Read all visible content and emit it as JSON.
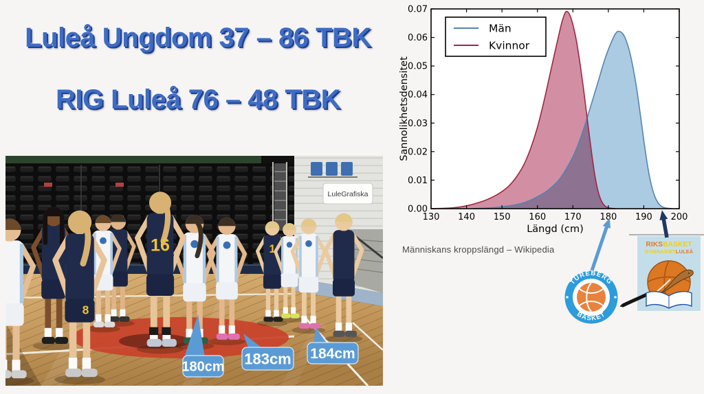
{
  "slide": {
    "title_line1": "Luleå Ungdom 37 – 86 TBK",
    "title_line2": "RIG Luleå 76 – 48 TBK",
    "title_color": "#3E6CC4",
    "title_shadow_color": "#1F3F8C",
    "background_color": "#F7F5F3"
  },
  "photo": {
    "sign_text": "LuleGrafiska",
    "jersey_numbers": [
      "16",
      "8",
      "1"
    ],
    "callout_color": "#5B9BD5",
    "callouts": [
      {
        "label": "180cm"
      },
      {
        "label": "183cm"
      },
      {
        "label": "184cm"
      }
    ]
  },
  "caption": "Människans kroppslängd – Wikipedia",
  "logos": {
    "tureberg": {
      "top_text": "TUREBERG",
      "bottom_text": "BASKET",
      "ring_color": "#2D9CDB",
      "ball_color": "#E8823C"
    },
    "rig": {
      "bg_color": "#C4DEE9",
      "line1": [
        {
          "text": "RIKS",
          "color": "#E8791B"
        },
        {
          "text": "BASKET",
          "color": "#F2CE0D"
        }
      ],
      "line2": [
        {
          "text": "GYMNASIET",
          "color": "#F2CE0D"
        },
        {
          "text": "LULEÅ",
          "color": "#E8791B"
        }
      ]
    }
  },
  "chart_data": {
    "type": "area",
    "title": "",
    "xlabel": "Längd (cm)",
    "ylabel": "Sannolikhetsdensitet",
    "xlim": [
      130,
      200
    ],
    "ylim": [
      0,
      0.07
    ],
    "xticks": [
      130,
      140,
      150,
      160,
      170,
      180,
      190,
      200
    ],
    "yticks": [
      0,
      0.01,
      0.02,
      0.03,
      0.04,
      0.05,
      0.06,
      0.07
    ],
    "grid": false,
    "legend_position": "upper-left",
    "series": [
      {
        "name": "Män",
        "line_color": "#5584B0",
        "fill_color": "#ABCBE3",
        "peak": {
          "x": 182.5,
          "y": 0.062
        },
        "points": [
          [
            142,
            0
          ],
          [
            148,
            0.0004
          ],
          [
            152,
            0.001
          ],
          [
            156,
            0.002
          ],
          [
            160,
            0.0042
          ],
          [
            163,
            0.0065
          ],
          [
            166,
            0.01
          ],
          [
            169,
            0.0158
          ],
          [
            171,
            0.021
          ],
          [
            173,
            0.0278
          ],
          [
            175,
            0.0358
          ],
          [
            177,
            0.044
          ],
          [
            179,
            0.0523
          ],
          [
            181,
            0.0588
          ],
          [
            182.5,
            0.062
          ],
          [
            184,
            0.0614
          ],
          [
            185,
            0.059
          ],
          [
            186,
            0.055
          ],
          [
            187,
            0.0492
          ],
          [
            188,
            0.042
          ],
          [
            189,
            0.0332
          ],
          [
            190,
            0.024
          ],
          [
            191,
            0.0155
          ],
          [
            192,
            0.009
          ],
          [
            193,
            0.0046
          ],
          [
            194,
            0.0021
          ],
          [
            195,
            0.0008
          ],
          [
            196,
            0.0003
          ],
          [
            198,
            0
          ]
        ]
      },
      {
        "name": "Kvinnor",
        "line_color": "#A02643",
        "fill_color": "#D28FA4",
        "peak": {
          "x": 168,
          "y": 0.069
        },
        "points": [
          [
            130,
            0
          ],
          [
            136,
            0.0003
          ],
          [
            140,
            0.001
          ],
          [
            145,
            0.0028
          ],
          [
            148,
            0.0045
          ],
          [
            150,
            0.006
          ],
          [
            152,
            0.008
          ],
          [
            154,
            0.011
          ],
          [
            156,
            0.015
          ],
          [
            158,
            0.0208
          ],
          [
            160,
            0.0285
          ],
          [
            162,
            0.0385
          ],
          [
            164,
            0.0497
          ],
          [
            166,
            0.0607
          ],
          [
            167,
            0.0658
          ],
          [
            168,
            0.069
          ],
          [
            169,
            0.0682
          ],
          [
            170,
            0.0645
          ],
          [
            171,
            0.0588
          ],
          [
            172,
            0.051
          ],
          [
            173,
            0.042
          ],
          [
            174,
            0.032
          ],
          [
            175,
            0.0222
          ],
          [
            176,
            0.0132
          ],
          [
            177,
            0.0066
          ],
          [
            178,
            0.0028
          ],
          [
            179,
            0.001
          ],
          [
            180,
            0.0003
          ],
          [
            182,
            0
          ]
        ]
      }
    ],
    "annotations": [
      {
        "name": "arrow-to-180",
        "color": "#5B9BD5",
        "points_at_x": 180
      },
      {
        "name": "arrow-to-196",
        "color": "#1F3864",
        "points_at_x": 196
      }
    ]
  }
}
